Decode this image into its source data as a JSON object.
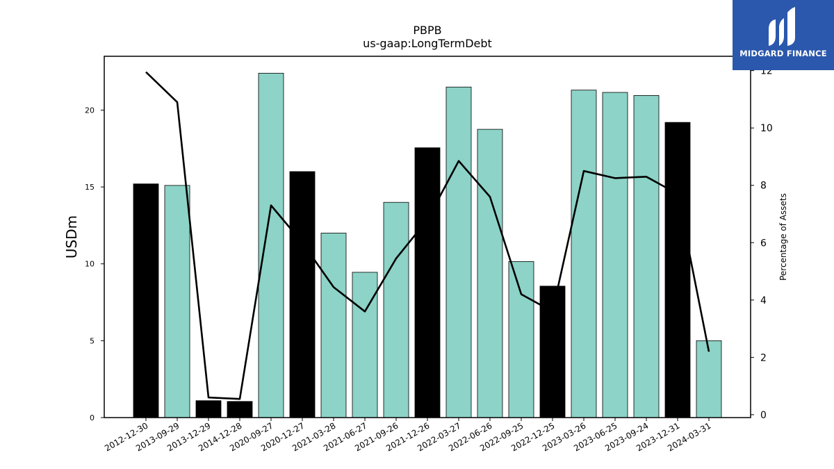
{
  "chart_data": {
    "type": "bar",
    "title": "PBPB",
    "subtitle": "us-gaap:LongTermDebt",
    "ylabel": "USDm",
    "y2label": "Percentage of Assets",
    "ylim": [
      0,
      23.5
    ],
    "y2lim": [
      -0.1,
      12.5
    ],
    "yticks": [
      0,
      5,
      10,
      15,
      20
    ],
    "y2ticks": [
      0,
      2,
      4,
      6,
      8,
      10,
      12
    ],
    "categories": [
      "2012-12-30",
      "2013-09-29",
      "2013-12-29",
      "2014-12-28",
      "2020-09-27",
      "2020-12-27",
      "2021-03-28",
      "2021-06-27",
      "2021-09-26",
      "2021-12-26",
      "2022-03-27",
      "2022-06-26",
      "2022-09-25",
      "2022-12-25",
      "2023-03-26",
      "2023-06-25",
      "2023-09-24",
      "2023-12-31",
      "2024-03-31"
    ],
    "values": [
      15.2,
      15.1,
      1.1,
      1.05,
      22.4,
      16.0,
      12.0,
      9.45,
      14.0,
      17.55,
      21.5,
      18.75,
      10.15,
      8.55,
      21.3,
      21.15,
      20.95,
      19.2,
      5.0
    ],
    "highlight": [
      true,
      false,
      true,
      true,
      false,
      true,
      false,
      false,
      false,
      true,
      false,
      false,
      false,
      true,
      false,
      false,
      false,
      true,
      false
    ],
    "line_series": {
      "name": "",
      "values": [
        11.95,
        10.9,
        0.6,
        0.55,
        7.3,
        6.0,
        4.45,
        3.6,
        5.45,
        6.8,
        8.85,
        7.6,
        4.2,
        3.6,
        8.5,
        8.25,
        8.3,
        7.7,
        2.2
      ]
    },
    "colors": {
      "bar": "#8dd3c7",
      "highlight": "#000000",
      "line": "#000000"
    },
    "grid": false
  },
  "logo": {
    "text": "MIDGARD FINANCE",
    "icon": "midgard-logo-icon"
  }
}
